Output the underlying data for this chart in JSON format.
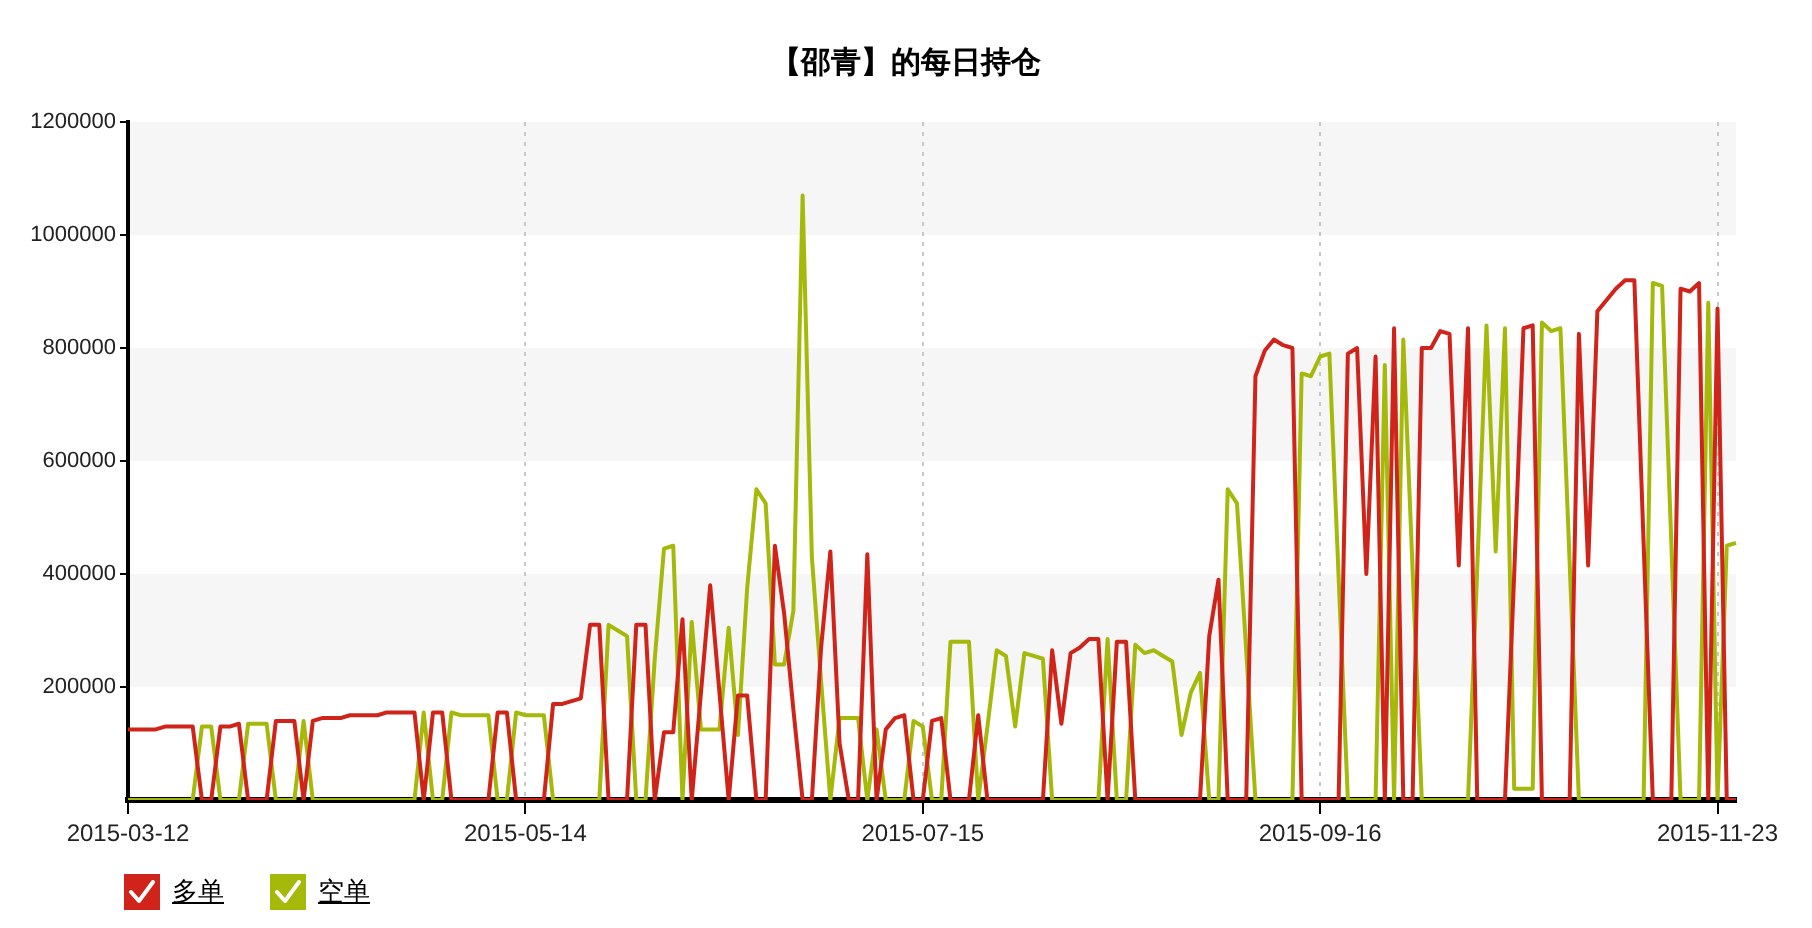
{
  "chart_data": {
    "type": "line",
    "title": "【邵青】的每日持仓",
    "categories": [
      "2015-03-12",
      null,
      null,
      null,
      null,
      null,
      null,
      null,
      null,
      null,
      null,
      null,
      null,
      null,
      null,
      null,
      null,
      null,
      null,
      null,
      null,
      null,
      null,
      null,
      null,
      null,
      null,
      null,
      null,
      null,
      null,
      null,
      null,
      null,
      null,
      null,
      null,
      null,
      null,
      null,
      null,
      null,
      null,
      "2015-05-14",
      null,
      null,
      null,
      null,
      null,
      null,
      null,
      null,
      null,
      null,
      null,
      null,
      null,
      null,
      null,
      null,
      null,
      null,
      null,
      null,
      null,
      null,
      null,
      null,
      null,
      null,
      null,
      null,
      null,
      null,
      null,
      null,
      null,
      null,
      null,
      null,
      null,
      null,
      null,
      null,
      null,
      null,
      "2015-07-15",
      null,
      null,
      null,
      null,
      null,
      null,
      null,
      null,
      null,
      null,
      null,
      null,
      null,
      null,
      null,
      null,
      null,
      null,
      null,
      null,
      null,
      null,
      null,
      null,
      null,
      null,
      null,
      null,
      null,
      null,
      null,
      null,
      null,
      null,
      null,
      null,
      null,
      null,
      null,
      null,
      null,
      null,
      "2015-09-16",
      null,
      null,
      null,
      null,
      null,
      null,
      null,
      null,
      null,
      null,
      null,
      null,
      null,
      null,
      null,
      null,
      null,
      null,
      null,
      null,
      null,
      null,
      null,
      null,
      null,
      null,
      null,
      null,
      null,
      null,
      null,
      null,
      null,
      null,
      null,
      null,
      null,
      null,
      null,
      null,
      null,
      null,
      "2015-11-23",
      null,
      null
    ],
    "series": [
      {
        "name": "多单",
        "color": "#d0241b",
        "values": [
          125000,
          125000,
          125000,
          125000,
          130000,
          130000,
          130000,
          130000,
          0,
          0,
          130000,
          130000,
          135000,
          0,
          0,
          0,
          140000,
          140000,
          140000,
          0,
          140000,
          145000,
          145000,
          145000,
          150000,
          150000,
          150000,
          150000,
          155000,
          155000,
          155000,
          155000,
          0,
          155000,
          155000,
          0,
          0,
          0,
          0,
          0,
          155000,
          155000,
          0,
          0,
          0,
          0,
          170000,
          170000,
          175000,
          180000,
          310000,
          310000,
          0,
          0,
          0,
          310000,
          310000,
          0,
          120000,
          120000,
          320000,
          0,
          190000,
          380000,
          190000,
          0,
          185000,
          185000,
          0,
          0,
          450000,
          330000,
          160000,
          0,
          0,
          270000,
          440000,
          100000,
          0,
          0,
          435000,
          0,
          125000,
          145000,
          150000,
          0,
          0,
          140000,
          145000,
          0,
          0,
          0,
          150000,
          0,
          0,
          0,
          0,
          0,
          0,
          0,
          265000,
          135000,
          260000,
          270000,
          285000,
          285000,
          0,
          280000,
          280000,
          0,
          0,
          0,
          0,
          0,
          0,
          0,
          0,
          290000,
          390000,
          0,
          0,
          0,
          750000,
          795000,
          815000,
          805000,
          800000,
          0,
          0,
          0,
          0,
          0,
          790000,
          800000,
          400000,
          785000,
          0,
          835000,
          0,
          0,
          800000,
          800000,
          830000,
          825000,
          415000,
          835000,
          0,
          0,
          0,
          0,
          400000,
          835000,
          840000,
          0,
          0,
          0,
          0,
          825000,
          415000,
          865000,
          885000,
          905000,
          920000,
          920000,
          455000,
          0,
          0,
          0,
          905000,
          900000,
          915000,
          0,
          870000,
          0,
          0
        ]
      },
      {
        "name": "空单",
        "color": "#a5b90a",
        "values": [
          0,
          0,
          0,
          0,
          0,
          0,
          0,
          0,
          130000,
          130000,
          0,
          0,
          0,
          135000,
          135000,
          135000,
          0,
          0,
          0,
          140000,
          0,
          0,
          0,
          0,
          0,
          0,
          0,
          0,
          0,
          0,
          0,
          0,
          155000,
          0,
          0,
          155000,
          150000,
          150000,
          150000,
          150000,
          0,
          0,
          155000,
          150000,
          150000,
          150000,
          0,
          0,
          0,
          0,
          0,
          0,
          310000,
          300000,
          290000,
          0,
          0,
          250000,
          445000,
          450000,
          0,
          315000,
          125000,
          125000,
          125000,
          305000,
          115000,
          375000,
          550000,
          525000,
          240000,
          240000,
          335000,
          1070000,
          430000,
          210000,
          0,
          145000,
          145000,
          145000,
          0,
          125000,
          0,
          0,
          0,
          140000,
          130000,
          0,
          0,
          280000,
          280000,
          280000,
          0,
          130000,
          265000,
          255000,
          130000,
          260000,
          255000,
          250000,
          0,
          0,
          0,
          0,
          0,
          0,
          285000,
          0,
          0,
          275000,
          260000,
          265000,
          255000,
          245000,
          115000,
          190000,
          225000,
          0,
          0,
          550000,
          525000,
          265000,
          0,
          0,
          0,
          0,
          0,
          755000,
          750000,
          785000,
          790000,
          395000,
          0,
          0,
          0,
          0,
          770000,
          0,
          815000,
          410000,
          0,
          0,
          0,
          0,
          0,
          0,
          410000,
          840000,
          440000,
          835000,
          20000,
          20000,
          20000,
          845000,
          830000,
          835000,
          420000,
          0,
          0,
          0,
          0,
          0,
          0,
          0,
          0,
          915000,
          910000,
          455000,
          0,
          0,
          0,
          880000,
          0,
          450000,
          455000
        ]
      }
    ],
    "ylim": [
      0,
      1200000
    ],
    "yticks": [
      200000,
      400000,
      600000,
      800000,
      1000000,
      1200000
    ],
    "grid": true,
    "legend": "bottom left"
  }
}
